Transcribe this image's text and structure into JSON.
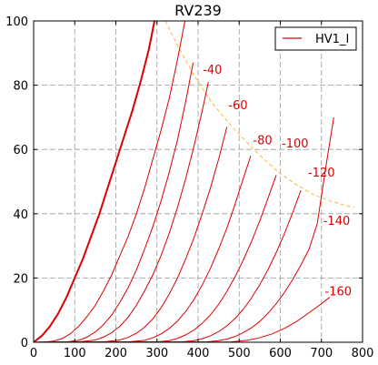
{
  "chart_data": {
    "type": "line",
    "title": "RV239",
    "xlabel": "",
    "ylabel": "",
    "xlim": [
      0,
      800
    ],
    "ylim": [
      0,
      100
    ],
    "x_ticks": [
      0,
      100,
      200,
      300,
      400,
      500,
      600,
      700,
      800
    ],
    "y_ticks": [
      0,
      20,
      40,
      60,
      80,
      100
    ],
    "grid": true,
    "legend": {
      "placement": "top-right",
      "entries": [
        "HV1_I"
      ]
    },
    "colors": {
      "curve": "#dd0000",
      "load_line": "#f4b841",
      "grid": "#9a9a9a"
    },
    "series": [
      {
        "name": "HV1_I",
        "label": "",
        "bold": true,
        "x": [
          0,
          20,
          40,
          60,
          80,
          100,
          120,
          140,
          160,
          180,
          200,
          220,
          240,
          260,
          280,
          294
        ],
        "y": [
          0,
          2,
          5,
          9,
          14,
          20,
          26,
          33,
          40,
          48,
          56,
          64,
          72,
          81,
          91,
          100
        ]
      },
      {
        "label": "",
        "x": [
          0,
          30,
          50,
          70,
          90,
          110,
          130,
          150,
          170,
          190,
          210,
          230,
          250,
          270,
          290,
          310,
          330,
          350,
          368
        ],
        "y": [
          0,
          0.1,
          0.4,
          1.2,
          2.7,
          5,
          8,
          11.5,
          16,
          21,
          27,
          33,
          40,
          48,
          57,
          66,
          76,
          88,
          100
        ]
      },
      {
        "label": "",
        "x": [
          0,
          80,
          110,
          130,
          150,
          170,
          190,
          210,
          230,
          250,
          270,
          290,
          310,
          330,
          350,
          370,
          388
        ],
        "y": [
          0,
          0.1,
          0.6,
          1.6,
          3.2,
          5.5,
          8.5,
          12.5,
          17,
          22.5,
          29,
          36,
          44,
          53,
          63,
          75,
          87
        ]
      },
      {
        "label": "-40",
        "x": [
          0,
          110,
          150,
          170,
          190,
          210,
          230,
          250,
          270,
          290,
          310,
          330,
          350,
          370,
          390,
          410,
          425
        ],
        "y": [
          0,
          0.1,
          0.7,
          1.6,
          3,
          5,
          7.8,
          11.5,
          16,
          21,
          27,
          34,
          42,
          51,
          61,
          72,
          81
        ]
      },
      {
        "label": "-60",
        "x": [
          0,
          170,
          210,
          230,
          250,
          270,
          290,
          310,
          330,
          350,
          370,
          390,
          410,
          430,
          450,
          470
        ],
        "y": [
          0,
          0.1,
          0.7,
          1.5,
          2.8,
          4.7,
          7.3,
          10.7,
          15,
          20,
          26,
          32.5,
          40,
          48,
          57,
          67
        ]
      },
      {
        "label": "-80",
        "x": [
          0,
          230,
          270,
          290,
          310,
          330,
          350,
          370,
          390,
          410,
          430,
          450,
          470,
          490,
          510,
          528
        ],
        "y": [
          0,
          0.1,
          0.6,
          1.4,
          2.6,
          4.3,
          6.6,
          9.6,
          13.3,
          17.8,
          23,
          29,
          35.5,
          43,
          51,
          58
        ]
      },
      {
        "label": "-100",
        "x": [
          0,
          300,
          330,
          350,
          370,
          390,
          410,
          430,
          450,
          470,
          490,
          510,
          530,
          550,
          570,
          590
        ],
        "y": [
          0,
          0.1,
          0.5,
          1.2,
          2.3,
          3.8,
          5.9,
          8.5,
          11.8,
          15.8,
          20.4,
          25.6,
          31.4,
          37.8,
          44.8,
          52
        ]
      },
      {
        "label": "-120",
        "x": [
          0,
          360,
          390,
          410,
          430,
          450,
          470,
          490,
          510,
          530,
          550,
          570,
          590,
          610,
          630,
          650
        ],
        "y": [
          0,
          0.1,
          0.5,
          1.1,
          2,
          3.3,
          5.1,
          7.4,
          10.3,
          13.8,
          17.9,
          22.6,
          27.9,
          33.8,
          40.3,
          47.3
        ]
      },
      {
        "label": "-140",
        "x": [
          0,
          420,
          450,
          470,
          490,
          510,
          530,
          550,
          570,
          590,
          610,
          630,
          650,
          670,
          690,
          710,
          730
        ],
        "y": [
          0,
          0.1,
          0.5,
          1,
          1.8,
          3,
          4.5,
          6.5,
          9,
          12,
          15.5,
          19.5,
          24,
          29,
          37,
          54,
          70
        ]
      },
      {
        "label": "-160",
        "x": [
          0,
          480,
          520,
          550,
          580,
          610,
          640,
          670,
          700,
          720
        ],
        "y": [
          0,
          0.1,
          0.6,
          1.4,
          2.6,
          4.3,
          6.5,
          9.2,
          12,
          14
        ]
      }
    ],
    "label_positions": [
      {
        "label": "-40",
        "x": 435,
        "y": 85
      },
      {
        "label": "-60",
        "x": 497,
        "y": 74
      },
      {
        "label": "-80",
        "x": 557,
        "y": 63
      },
      {
        "label": "-100",
        "x": 636,
        "y": 62
      },
      {
        "label": "-120",
        "x": 700,
        "y": 53
      },
      {
        "label": "-140",
        "x": 737,
        "y": 38
      },
      {
        "label": "-160",
        "x": 741,
        "y": 16
      }
    ],
    "load_line": {
      "x": [
        320,
        360,
        400,
        440,
        480,
        520,
        560,
        600,
        640,
        680,
        720,
        760,
        780
      ],
      "y": [
        100,
        90,
        81,
        73.5,
        67.5,
        62,
        57,
        52.5,
        49,
        46,
        44,
        42.5,
        42
      ]
    }
  }
}
